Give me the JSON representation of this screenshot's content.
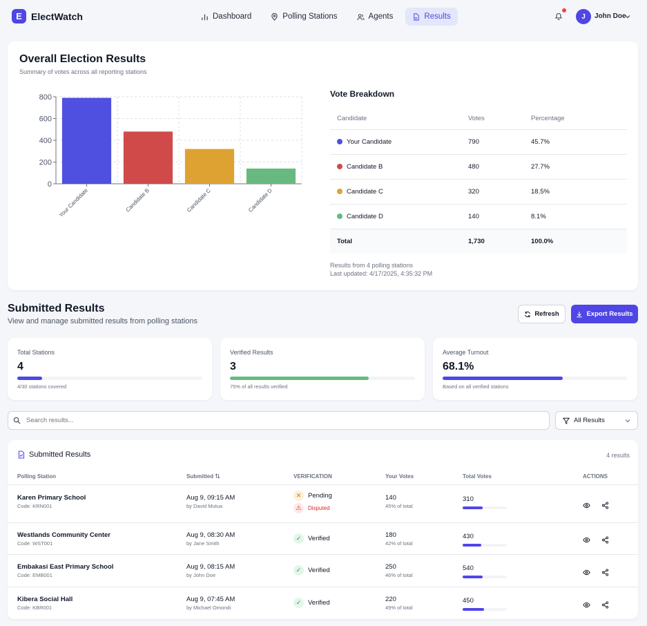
{
  "header": {
    "logo_letter": "E",
    "brand": "ElectWatch",
    "nav": [
      {
        "label": "Dashboard",
        "icon": "bar-chart-icon",
        "active": false
      },
      {
        "label": "Polling Stations",
        "icon": "map-pin-icon",
        "active": false
      },
      {
        "label": "Agents",
        "icon": "users-icon",
        "active": false
      },
      {
        "label": "Results",
        "icon": "file-icon",
        "active": true
      }
    ],
    "user_initial": "J",
    "user_name": "John Doe"
  },
  "overall": {
    "title": "Overall Election Results",
    "subtitle": "Summary of votes across all reporting stations",
    "breakdown_title": "Vote Breakdown",
    "columns": [
      "Candidate",
      "Votes",
      "Percentage"
    ],
    "rows": [
      {
        "candidate": "Your Candidate",
        "votes": "790",
        "percentage": "45.7%",
        "color": "#4f4fe0"
      },
      {
        "candidate": "Candidate B",
        "votes": "480",
        "percentage": "27.7%",
        "color": "#d04a4a"
      },
      {
        "candidate": "Candidate C",
        "votes": "320",
        "percentage": "18.5%",
        "color": "#dea233"
      },
      {
        "candidate": "Candidate D",
        "votes": "140",
        "percentage": "8.1%",
        "color": "#68b97f"
      }
    ],
    "total": {
      "label": "Total",
      "votes": "1,730",
      "percentage": "100.0%"
    },
    "note_stations": "Results from 4 polling stations",
    "note_updated": "Last updated: 4/17/2025, 4:35:32 PM"
  },
  "chart_data": {
    "type": "bar",
    "categories": [
      "Your Candidate",
      "Candidate B",
      "Candidate C",
      "Candidate D"
    ],
    "values": [
      790,
      480,
      320,
      140
    ],
    "colors": [
      "#4f4fe0",
      "#d04a4a",
      "#dea233",
      "#68b97f"
    ],
    "ylim": [
      0,
      800
    ],
    "yticks": [
      0,
      200,
      400,
      600,
      800
    ],
    "grid": true,
    "title": "",
    "xlabel": "",
    "ylabel": ""
  },
  "submitted": {
    "title": "Submitted Results",
    "subtitle": "View and manage submitted results from polling stations",
    "refresh_label": "Refresh",
    "export_label": "Export Results",
    "stats": [
      {
        "label": "Total Stations",
        "value": "4",
        "progress": 0.133,
        "color": "#4f46e5",
        "note": "4/30 stations covered"
      },
      {
        "label": "Verified Results",
        "value": "3",
        "progress": 0.75,
        "color": "#68b97f",
        "note": "75% of all results verified"
      },
      {
        "label": "Average Turnout",
        "value": "68.1%",
        "progress": 0.65,
        "color": "#4f46e5",
        "note": "Based on all verified stations"
      }
    ],
    "search_placeholder": "Search results...",
    "filter_label": "All Results",
    "table_title": "Submitted Results",
    "table_count": "4 results",
    "columns": {
      "station": "Polling Station",
      "submitted": "Submitted",
      "verification": "VERIFICATION",
      "your_votes": "Your Votes",
      "total_votes": "Total Votes",
      "actions": "ACTIONS"
    },
    "rows": [
      {
        "station": "Karen Primary School",
        "code": "Code: KRN001",
        "time": "Aug 9, 09:15 AM",
        "by": "by David Mutua",
        "status": "Pending",
        "status_type": "pending",
        "dispute": "Disputed",
        "your_votes": "140",
        "your_pct": "45% of total",
        "total_votes": "310",
        "total_fill": 0.45
      },
      {
        "station": "Westlands Community Center",
        "code": "Code: WST001",
        "time": "Aug 9, 08:30 AM",
        "by": "by Jane Smith",
        "status": "Verified",
        "status_type": "verified",
        "dispute": null,
        "your_votes": "180",
        "your_pct": "42% of total",
        "total_votes": "430",
        "total_fill": 0.42
      },
      {
        "station": "Embakasi East Primary School",
        "code": "Code: EMB001",
        "time": "Aug 9, 08:15 AM",
        "by": "by John Doe",
        "status": "Verified",
        "status_type": "verified",
        "dispute": null,
        "your_votes": "250",
        "your_pct": "46% of total",
        "total_votes": "540",
        "total_fill": 0.46
      },
      {
        "station": "Kibera Social Hall",
        "code": "Code: KBR001",
        "time": "Aug 9, 07:45 AM",
        "by": "by Michael Omondi",
        "status": "Verified",
        "status_type": "verified",
        "dispute": null,
        "your_votes": "220",
        "your_pct": "49% of total",
        "total_votes": "450",
        "total_fill": 0.49
      }
    ]
  }
}
